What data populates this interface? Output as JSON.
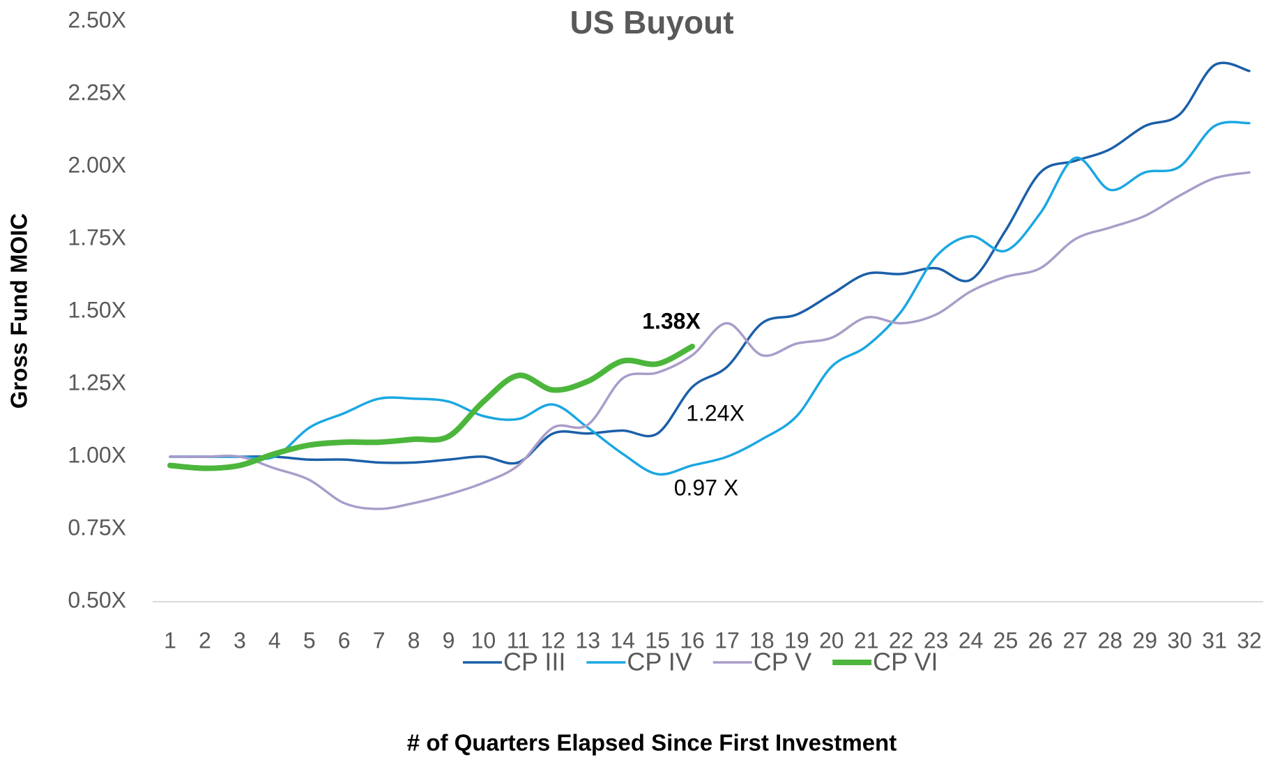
{
  "chart_data": {
    "type": "line",
    "title": "US Buyout",
    "xlabel": "# of Quarters Elapsed Since First Investment",
    "ylabel": "Gross Fund MOIC",
    "x": [
      1,
      2,
      3,
      4,
      5,
      6,
      7,
      8,
      9,
      10,
      11,
      12,
      13,
      14,
      15,
      16,
      17,
      18,
      19,
      20,
      21,
      22,
      23,
      24,
      25,
      26,
      27,
      28,
      29,
      30,
      31,
      32
    ],
    "ylim": [
      0.5,
      2.5
    ],
    "yticks": [
      {
        "value": 0.5,
        "label": "0.50X"
      },
      {
        "value": 0.75,
        "label": "0.75X"
      },
      {
        "value": 1.0,
        "label": "1.00X"
      },
      {
        "value": 1.25,
        "label": "1.25X"
      },
      {
        "value": 1.5,
        "label": "1.50X"
      },
      {
        "value": 1.75,
        "label": "1.75X"
      },
      {
        "value": 2.0,
        "label": "2.00X"
      },
      {
        "value": 2.25,
        "label": "2.25X"
      },
      {
        "value": 2.5,
        "label": "2.50X"
      }
    ],
    "grid": false,
    "legend": "bottom",
    "series": [
      {
        "name": "CP III",
        "color": "#1b5fa8",
        "values": [
          1.0,
          1.0,
          1.0,
          1.0,
          0.99,
          0.99,
          0.98,
          0.98,
          0.99,
          1.0,
          0.98,
          1.08,
          1.08,
          1.09,
          1.08,
          1.24,
          1.31,
          1.46,
          1.49,
          1.56,
          1.63,
          1.63,
          1.65,
          1.61,
          1.78,
          1.98,
          2.02,
          2.06,
          2.14,
          2.18,
          2.35,
          2.33
        ]
      },
      {
        "name": "CP IV",
        "color": "#1ba7e1",
        "values": [
          1.0,
          1.0,
          1.0,
          1.0,
          1.1,
          1.15,
          1.2,
          1.2,
          1.19,
          1.14,
          1.13,
          1.18,
          1.1,
          1.01,
          0.94,
          0.97,
          1.0,
          1.06,
          1.14,
          1.31,
          1.38,
          1.5,
          1.69,
          1.76,
          1.71,
          1.84,
          2.03,
          1.92,
          1.98,
          2.0,
          2.14,
          2.15
        ]
      },
      {
        "name": "CP V",
        "color": "#a99dc9",
        "values": [
          1.0,
          1.0,
          1.0,
          0.96,
          0.92,
          0.84,
          0.82,
          0.84,
          0.87,
          0.91,
          0.97,
          1.1,
          1.11,
          1.27,
          1.29,
          1.35,
          1.46,
          1.35,
          1.39,
          1.41,
          1.48,
          1.46,
          1.49,
          1.57,
          1.62,
          1.65,
          1.75,
          1.79,
          1.83,
          1.9,
          1.96,
          1.98
        ]
      },
      {
        "name": "CP VI",
        "color": "#4cb63c",
        "values": [
          0.97,
          0.96,
          0.97,
          1.01,
          1.04,
          1.05,
          1.05,
          1.06,
          1.07,
          1.19,
          1.28,
          1.23,
          1.26,
          1.33,
          1.32,
          1.38,
          null,
          null,
          null,
          null,
          null,
          null,
          null,
          null,
          null,
          null,
          null,
          null,
          null,
          null,
          null,
          null
        ]
      }
    ],
    "annotations": [
      "1.38X",
      "1.24X",
      "0.97 X"
    ]
  }
}
